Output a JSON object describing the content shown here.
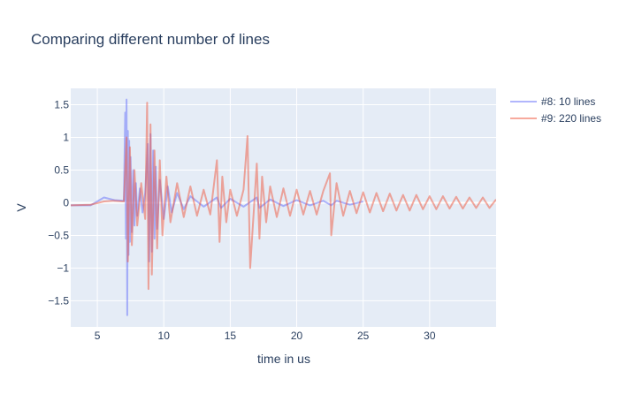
{
  "chart_data": {
    "type": "line",
    "title": "Comparing different number of lines",
    "xlabel": "time in us",
    "ylabel": "V",
    "xlim": [
      3.0,
      35.0
    ],
    "ylim": [
      -1.9,
      1.75
    ],
    "xticks": [
      5,
      10,
      15,
      20,
      25,
      30
    ],
    "xtick_labels": [
      "5",
      "10",
      "15",
      "20",
      "25",
      "30"
    ],
    "yticks": [
      -1.5,
      -1,
      -0.5,
      0,
      0.5,
      1,
      1.5
    ],
    "ytick_labels": [
      "−1.5",
      "−1",
      "−0.5",
      "0",
      "0.5",
      "1",
      "1.5"
    ],
    "grid": true,
    "legend_position": "top-right",
    "plot_bgcolor": "#E5ECF6",
    "series": [
      {
        "name": "#8: 10 lines",
        "color": "#636EFA",
        "opacity": 0.5,
        "x": [
          3.0,
          4.5,
          5.5,
          6.3,
          7.0,
          7.1,
          7.15,
          7.2,
          7.25,
          7.3,
          7.35,
          7.4,
          7.45,
          7.5,
          7.6,
          7.7,
          7.8,
          7.9,
          8.0,
          8.2,
          8.4,
          8.6,
          8.8,
          8.9,
          9.0,
          9.1,
          9.2,
          9.3,
          9.4,
          9.5,
          9.7,
          10.0,
          10.3,
          10.6,
          11.0,
          11.5,
          12.0,
          13.0,
          14.0,
          14.3,
          15.0,
          16.0,
          17.0,
          17.2,
          18.0,
          19.0,
          20.0,
          21.0,
          22.0,
          22.6,
          23.0,
          24.0,
          25.0
        ],
        "y": [
          -0.04,
          -0.04,
          0.08,
          0.04,
          0.03,
          1.38,
          -0.55,
          1.58,
          -1.72,
          1.1,
          -0.8,
          0.95,
          -0.6,
          0.7,
          -0.45,
          0.5,
          -0.35,
          0.3,
          -0.2,
          0.22,
          -0.15,
          0.15,
          0.9,
          -0.9,
          1.05,
          -0.75,
          0.8,
          -0.55,
          0.55,
          -0.4,
          0.35,
          -0.25,
          0.25,
          -0.15,
          0.15,
          -0.1,
          0.1,
          -0.06,
          0.08,
          -0.08,
          0.06,
          -0.06,
          0.08,
          -0.08,
          0.05,
          -0.05,
          0.04,
          -0.04,
          0.03,
          -0.04,
          0.03,
          -0.03,
          0.02
        ]
      },
      {
        "name": "#9: 220 lines",
        "color": "#EF553B",
        "opacity": 0.5,
        "x": [
          3.0,
          4.5,
          5.5,
          6.2,
          7.0,
          7.2,
          7.3,
          7.45,
          7.6,
          7.8,
          8.0,
          8.3,
          8.6,
          8.75,
          8.85,
          9.0,
          9.1,
          9.3,
          9.5,
          9.7,
          9.9,
          10.2,
          10.5,
          11.0,
          11.5,
          12.0,
          12.5,
          13.0,
          13.5,
          14.0,
          14.2,
          14.4,
          14.7,
          15.0,
          15.5,
          16.0,
          16.3,
          16.5,
          17.0,
          17.2,
          17.4,
          17.7,
          18.0,
          18.5,
          19.0,
          19.5,
          20.0,
          20.5,
          21.0,
          21.5,
          22.0,
          22.5,
          22.6,
          23.0,
          23.5,
          24.0,
          24.5,
          25.0,
          25.5,
          26.0,
          26.5,
          27.0,
          27.5,
          28.0,
          28.5,
          29.0,
          29.5,
          30.0,
          30.5,
          31.0,
          31.5,
          32.0,
          32.5,
          33.0,
          33.5,
          34.0,
          34.5,
          35.0
        ],
        "y": [
          -0.04,
          -0.03,
          0.02,
          0.03,
          0.02,
          1.0,
          -0.9,
          0.85,
          -0.65,
          0.5,
          -0.35,
          0.3,
          -0.25,
          1.53,
          -1.32,
          1.2,
          -1.1,
          0.8,
          -0.7,
          0.65,
          -0.5,
          0.4,
          -0.3,
          0.3,
          -0.22,
          0.25,
          -0.2,
          0.2,
          -0.18,
          0.65,
          -0.6,
          0.4,
          -0.3,
          0.2,
          -0.2,
          0.2,
          1.02,
          -1.0,
          0.6,
          -0.55,
          0.4,
          -0.3,
          0.25,
          -0.22,
          0.22,
          -0.2,
          0.2,
          -0.18,
          0.18,
          -0.18,
          0.18,
          0.45,
          -0.5,
          0.3,
          -0.2,
          0.18,
          -0.16,
          0.16,
          -0.15,
          0.15,
          -0.13,
          0.14,
          -0.12,
          0.12,
          -0.12,
          0.12,
          -0.1,
          0.1,
          -0.1,
          0.1,
          -0.09,
          0.09,
          -0.09,
          0.08,
          -0.08,
          0.08,
          -0.08,
          0.05
        ]
      }
    ]
  }
}
